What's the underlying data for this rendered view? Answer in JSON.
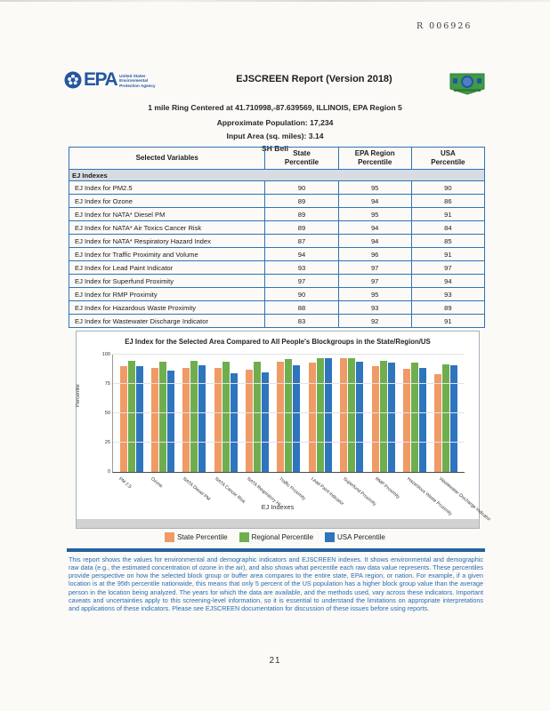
{
  "page": {
    "stamp": "R 006926",
    "page_number": "21"
  },
  "header": {
    "epa_logo_word": "EPA",
    "epa_agency_text": "United States Environmental Protection Agency",
    "title": "EJSCREEN Report (Version 2018)",
    "location_line": "1 mile Ring Centered at 41.710998,-87.639569, ILLINOIS, EPA Region 5",
    "population_line": "Approximate Population: 17,234",
    "area_line": "Input Area (sq. miles): 3.14",
    "site_name": "SH Bell"
  },
  "table": {
    "columns": {
      "variables": "Selected Variables",
      "state": [
        "State",
        "Percentile"
      ],
      "region": [
        "EPA Region",
        "Percentile"
      ],
      "usa": [
        "USA",
        "Percentile"
      ]
    },
    "section_label": "EJ Indexes",
    "rows": [
      {
        "label": "EJ Index for PM2.5",
        "state": 90,
        "region": 95,
        "usa": 90
      },
      {
        "label": "EJ Index for Ozone",
        "state": 89,
        "region": 94,
        "usa": 86
      },
      {
        "label": "EJ Index for NATA* Diesel PM",
        "state": 89,
        "region": 95,
        "usa": 91
      },
      {
        "label": "EJ Index for NATA* Air Toxics Cancer Risk",
        "state": 89,
        "region": 94,
        "usa": 84
      },
      {
        "label": "EJ Index for NATA* Respiratory Hazard Index",
        "state": 87,
        "region": 94,
        "usa": 85
      },
      {
        "label": "EJ Index for Traffic Proximity and Volume",
        "state": 94,
        "region": 96,
        "usa": 91
      },
      {
        "label": "EJ Index for Lead Paint Indicator",
        "state": 93,
        "region": 97,
        "usa": 97
      },
      {
        "label": "EJ Index for Superfund Proximity",
        "state": 97,
        "region": 97,
        "usa": 94
      },
      {
        "label": "EJ Index for RMP Proximity",
        "state": 90,
        "region": 95,
        "usa": 93
      },
      {
        "label": "EJ Index for Hazardous Waste Proximity",
        "state": 88,
        "region": 93,
        "usa": 89
      },
      {
        "label": "EJ Index for Wastewater Discharge Indicator",
        "state": 83,
        "region": 92,
        "usa": 91
      }
    ]
  },
  "chart_data": {
    "type": "bar",
    "title": "EJ Index for the Selected Area Compared to All People's Blockgroups in the State/Region/US",
    "xlabel": "EJ Indexes",
    "ylabel": "Percentile",
    "ylim": [
      0,
      100
    ],
    "yticks": [
      0,
      25,
      50,
      75,
      100
    ],
    "grid": true,
    "legend_position": "bottom",
    "categories": [
      "PM 2.5",
      "Ozone",
      "NATA Diesel PM",
      "NATA Cancer Risk",
      "NATA Respiratory HI",
      "Traffic Proximity",
      "Lead Paint Indicator",
      "Superfund Proximity",
      "RMP Proximity",
      "Hazardous Waste Proximity",
      "Wastewater Discharge Indicator"
    ],
    "series": [
      {
        "name": "State Percentile",
        "color": "#f09a66",
        "values": [
          90,
          89,
          89,
          89,
          87,
          94,
          93,
          97,
          90,
          88,
          83
        ]
      },
      {
        "name": "Regional Percentile",
        "color": "#6fae4e",
        "values": [
          95,
          94,
          95,
          94,
          94,
          96,
          97,
          97,
          95,
          93,
          92
        ]
      },
      {
        "name": "USA Percentile",
        "color": "#2e75be",
        "values": [
          90,
          86,
          91,
          84,
          85,
          91,
          97,
          94,
          93,
          89,
          91
        ]
      }
    ]
  },
  "footer": {
    "disclaimer": "This report shows the values for environmental and demographic indicators and EJSCREEN indexes. It shows environmental and demographic raw data (e.g., the estimated concentration of ozone in the air), and also shows what percentile each raw data value represents. These percentiles provide perspective on how the selected block group or buffer area compares to the entire state, EPA region, or nation. For example, if a given location is at the 95th percentile nationwide, this means that only 5 percent of the US population has a higher block group value than the average person in the location being analyzed. The years for which the data are available, and the methods used, vary across these indicators. Important caveats and uncertainties apply to this screening-level information, so it is essential to understand the limitations on appropriate interpretations and applications of these indicators. Please see EJSCREEN documentation for discussion of these issues before using reports."
  }
}
